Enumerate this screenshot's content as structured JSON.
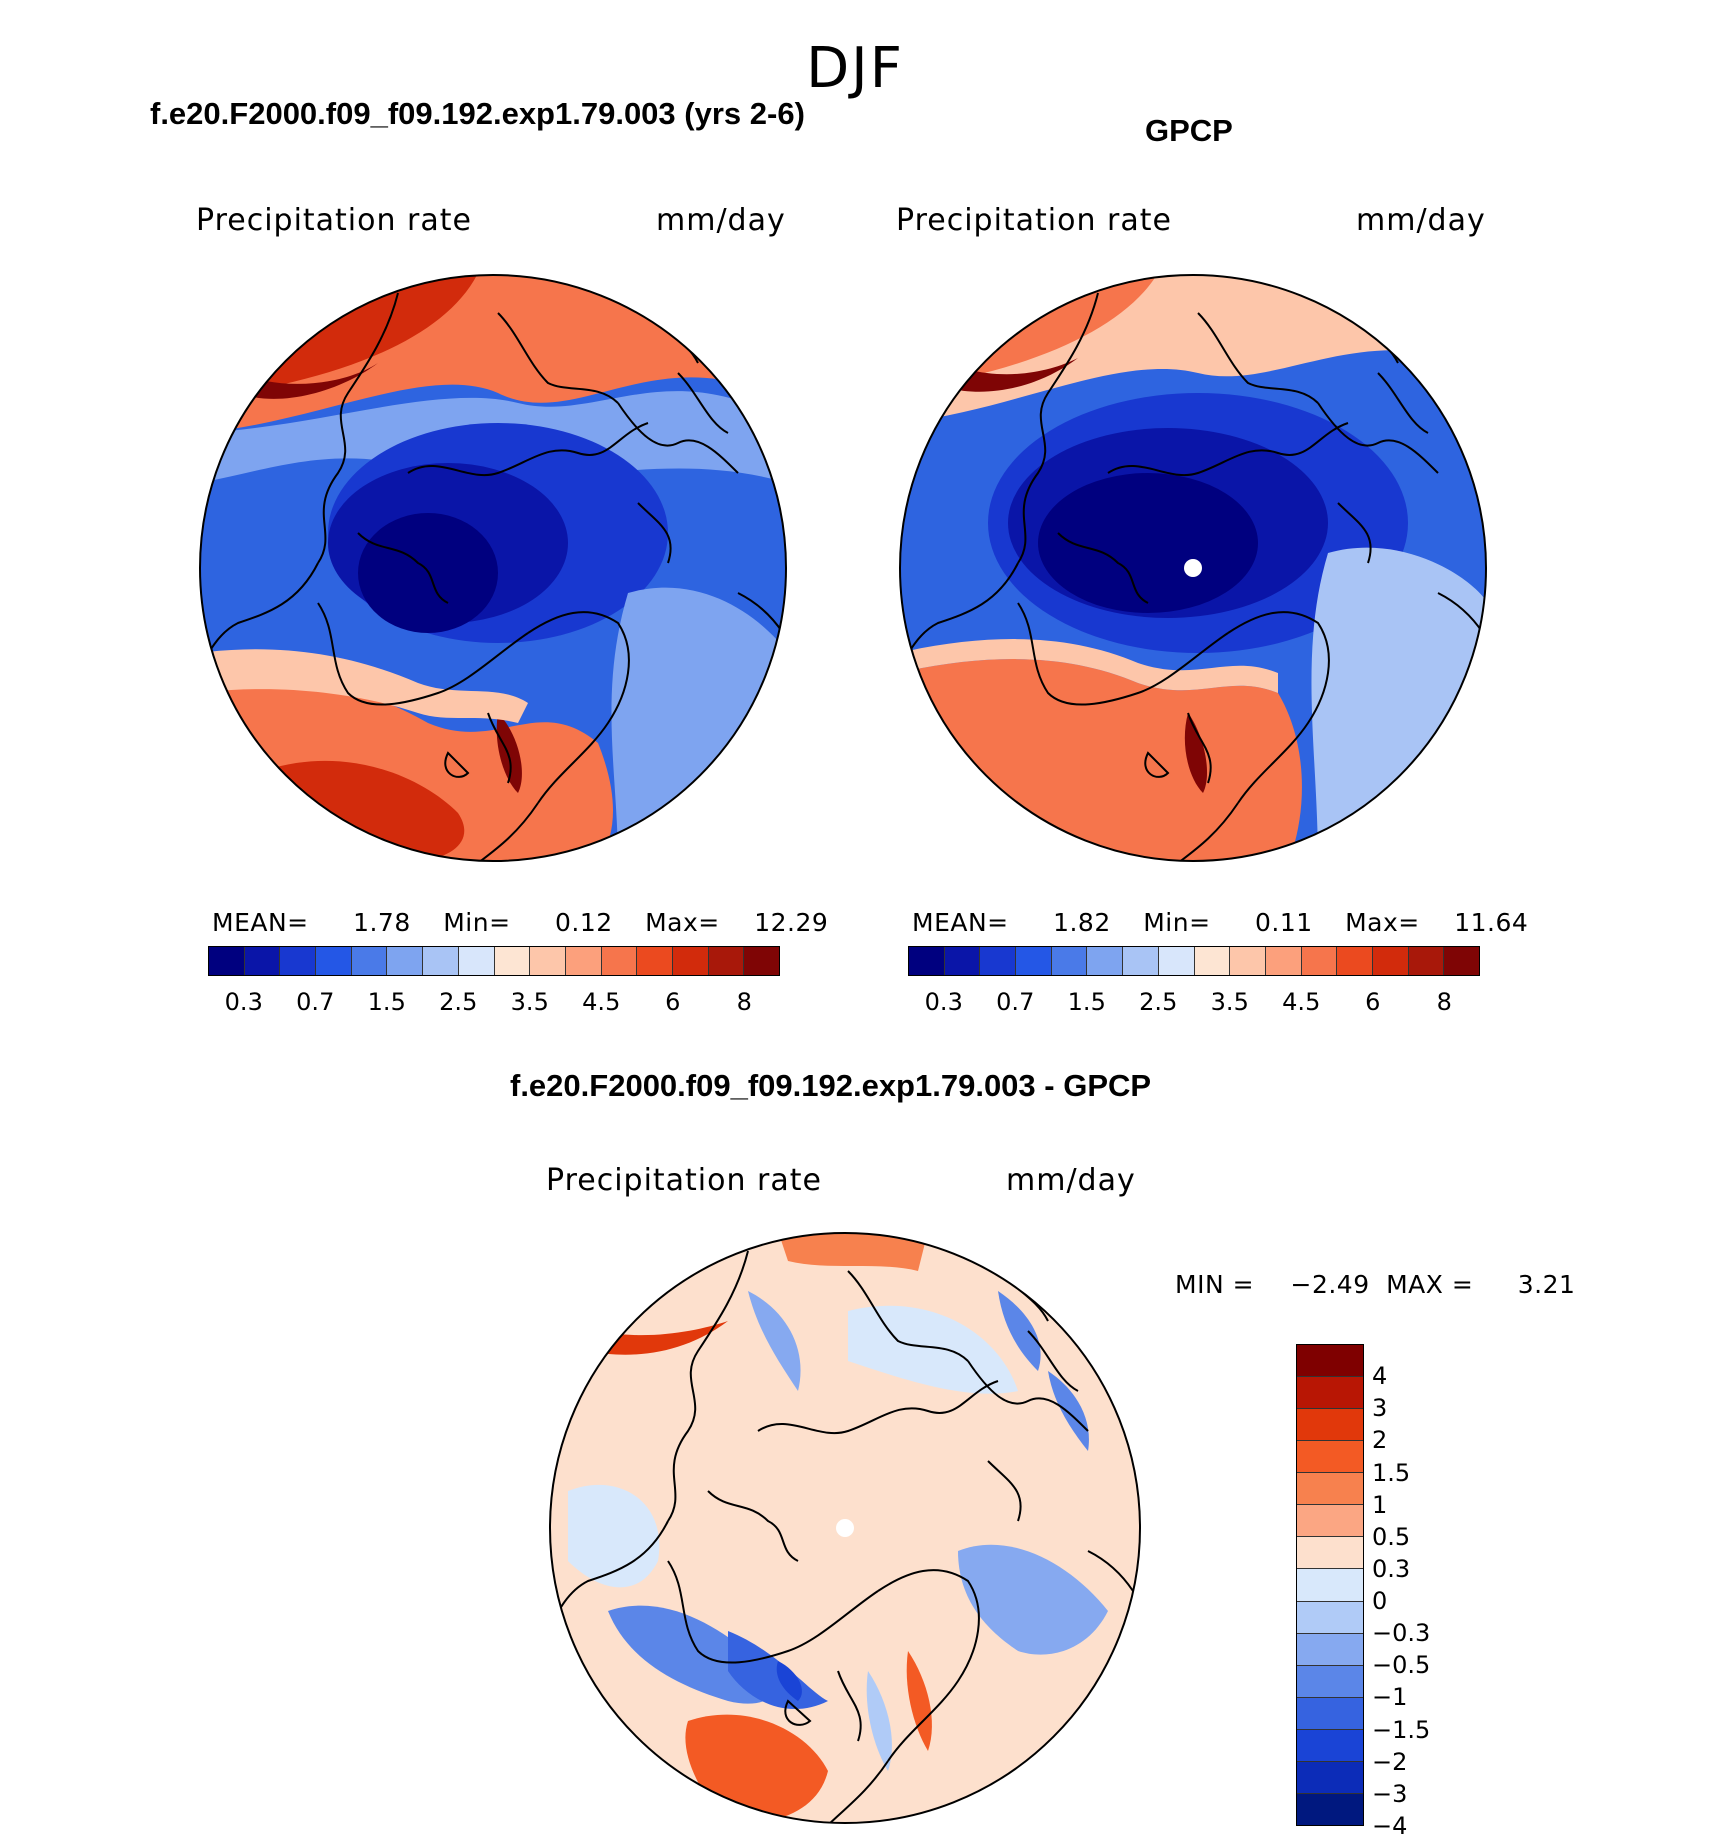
{
  "figure": {
    "season": "DJF",
    "panels": [
      {
        "title": "f.e20.F2000.f09_f09.192.exp1.79.003 (yrs 2-6)",
        "variable": "Precipitation rate",
        "units": "mm/day",
        "stats": {
          "mean_label": "MEAN=",
          "mean": "1.78",
          "min_label": "Min=",
          "min": "0.12",
          "max_label": "Max=",
          "max": "12.29"
        }
      },
      {
        "title": "GPCP",
        "variable": "Precipitation rate",
        "units": "mm/day",
        "stats": {
          "mean_label": "MEAN=",
          "mean": "1.82",
          "min_label": "Min=",
          "min": "0.11",
          "max_label": "Max=",
          "max": "11.64"
        }
      },
      {
        "title": "f.e20.F2000.f09_f09.192.exp1.79.003 - GPCP",
        "variable": "Precipitation rate",
        "units": "mm/day",
        "stats": {
          "min_label": "MIN =",
          "min": "−2.49",
          "max_label": "MAX =",
          "max": "3.21"
        }
      }
    ]
  },
  "colorbars": {
    "abs": {
      "colors": [
        "#00007f",
        "#0a15a8",
        "#1838d0",
        "#2457e6",
        "#4a7ae8",
        "#7ea4f0",
        "#a9c4f5",
        "#d8e6fb",
        "#fde5d3",
        "#fdc6aa",
        "#fca07c",
        "#f6754c",
        "#eb4a1f",
        "#d22b0c",
        "#a8180a",
        "#7f0505"
      ],
      "tick_labels": [
        "0.3",
        "0.7",
        "1.5",
        "2.5",
        "3.5",
        "4.5",
        "6",
        "8"
      ]
    },
    "diff": {
      "colors": [
        "#7f0000",
        "#b81604",
        "#e1380b",
        "#f35a24",
        "#f7814e",
        "#fba683",
        "#fde0cd",
        "#d8e8fb",
        "#b0cbf7",
        "#86a9f0",
        "#5b86e8",
        "#3663e0",
        "#1a44d6",
        "#0c2cb8",
        "#00187f"
      ],
      "tick_labels": [
        "4",
        "3",
        "2",
        "1.5",
        "1",
        "0.5",
        "0.3",
        "0",
        "−0.3",
        "−0.5",
        "−1",
        "−1.5",
        "−2",
        "−3",
        "−4"
      ]
    }
  }
}
